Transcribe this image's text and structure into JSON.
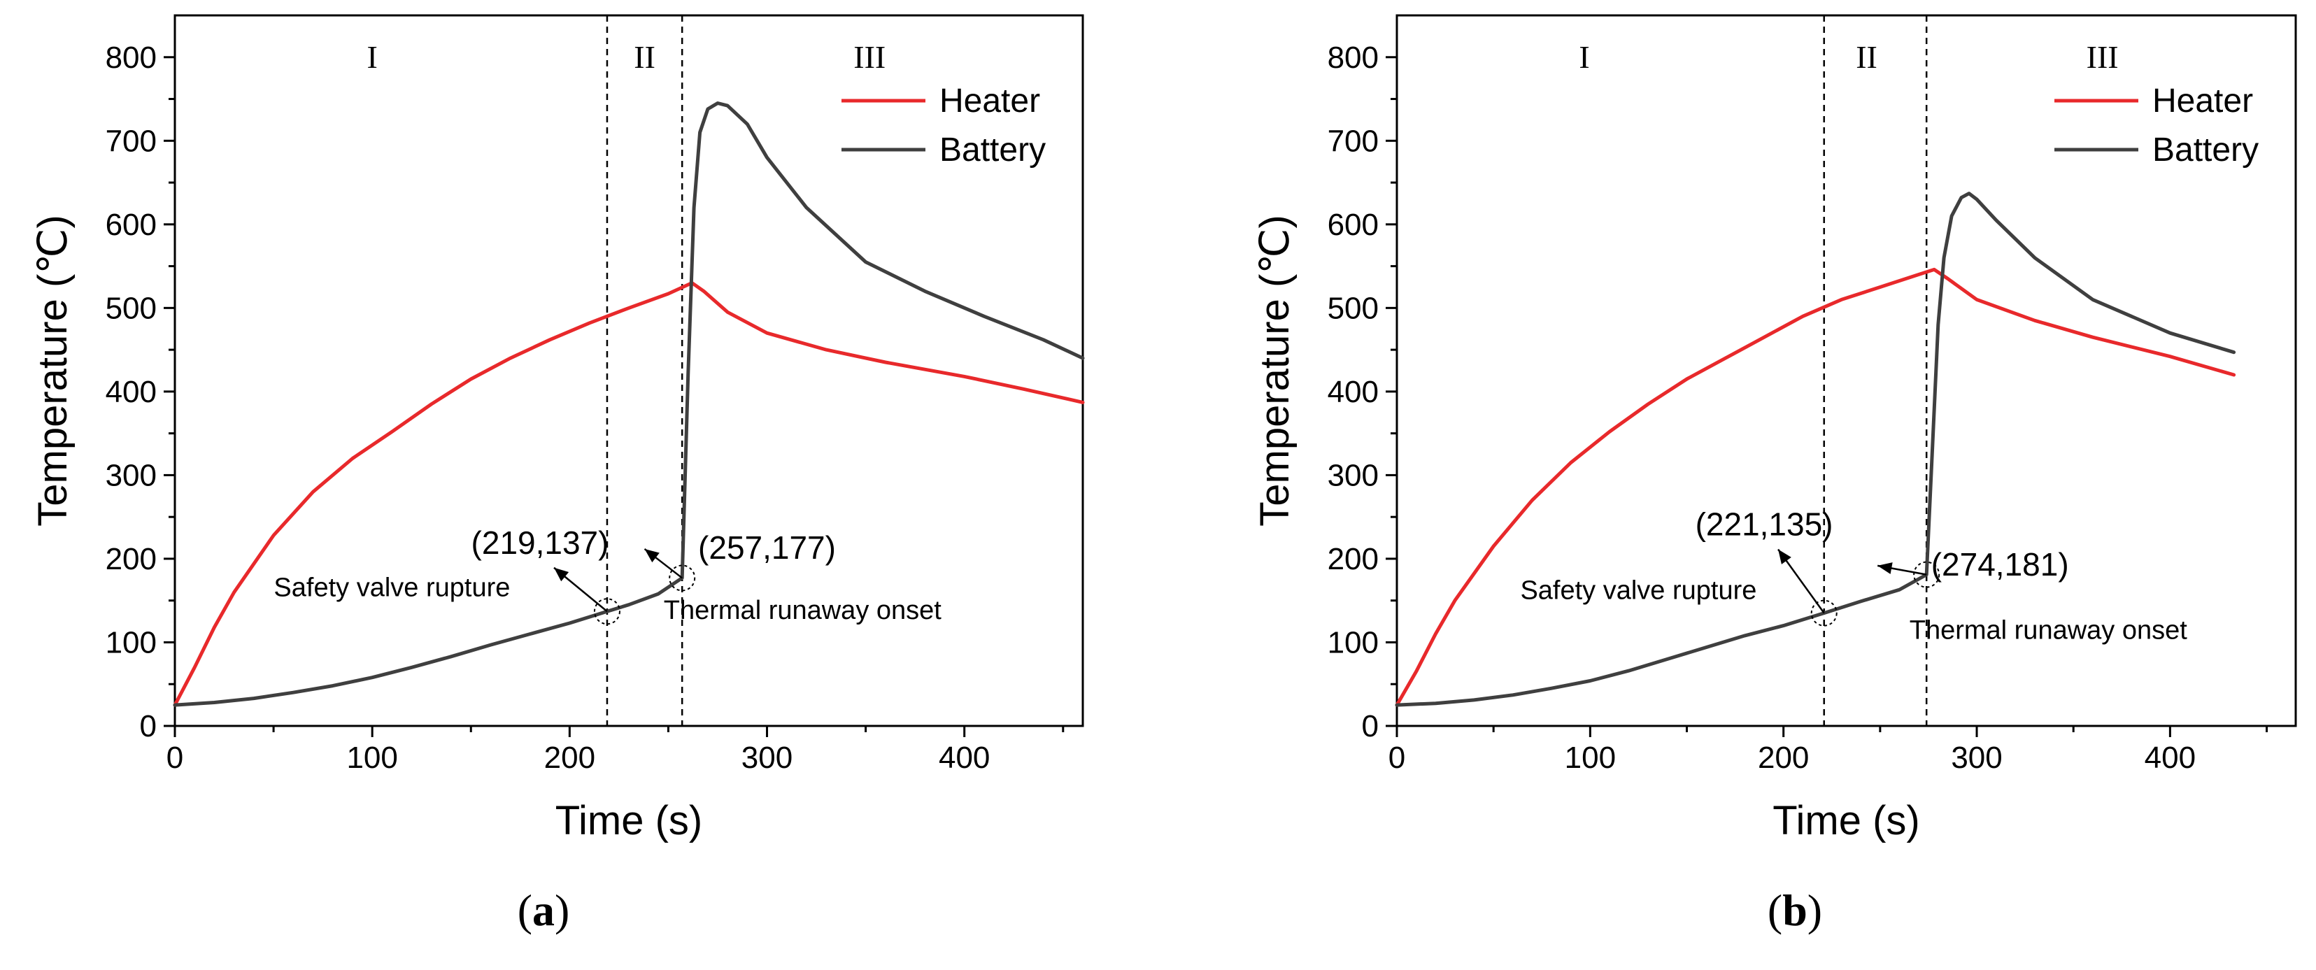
{
  "figure": {
    "panels": [
      {
        "caption_open": "(",
        "caption_label": "a",
        "caption_close": ")"
      },
      {
        "caption_open": "(",
        "caption_label": "b",
        "caption_close": ")"
      }
    ]
  },
  "chart_data": [
    {
      "type": "line",
      "panel": "a",
      "xlabel": "Time (s)",
      "ylabel": "Temperature (℃)",
      "xlim": [
        0,
        460
      ],
      "ylim": [
        0,
        850
      ],
      "xticks": [
        0,
        100,
        200,
        300,
        400
      ],
      "yticks": [
        0,
        100,
        200,
        300,
        400,
        500,
        600,
        700,
        800
      ],
      "grid": false,
      "legend_position": "top-right",
      "series": [
        {
          "name": "Heater",
          "color": "#e8292b",
          "x": [
            0,
            10,
            20,
            30,
            50,
            70,
            90,
            110,
            130,
            150,
            170,
            190,
            210,
            230,
            250,
            262,
            268,
            280,
            300,
            330,
            360,
            400,
            430,
            460
          ],
          "y": [
            25,
            70,
            118,
            160,
            228,
            280,
            320,
            352,
            385,
            415,
            440,
            462,
            482,
            500,
            517,
            530,
            520,
            495,
            470,
            450,
            435,
            418,
            403,
            387
          ]
        },
        {
          "name": "Battery",
          "color": "#3f3f3f",
          "x": [
            0,
            20,
            40,
            60,
            80,
            100,
            120,
            140,
            160,
            180,
            200,
            219,
            230,
            245,
            257,
            260,
            263,
            266,
            270,
            275,
            280,
            290,
            300,
            320,
            350,
            380,
            410,
            440,
            460
          ],
          "y": [
            25,
            28,
            33,
            40,
            48,
            58,
            70,
            83,
            97,
            110,
            123,
            137,
            145,
            158,
            177,
            420,
            620,
            710,
            738,
            745,
            742,
            720,
            680,
            620,
            555,
            520,
            490,
            462,
            440
          ]
        }
      ],
      "phases": [
        {
          "label": "I",
          "x": 100
        },
        {
          "label": "II",
          "x": 238
        },
        {
          "label": "III",
          "x": 352
        }
      ],
      "phase_lines": [
        219,
        257
      ],
      "annotations": [
        {
          "point_label": "(219,137)",
          "point": [
            219,
            137
          ],
          "label_at": [
            185,
            206
          ],
          "description": "Safety valve rupture",
          "desc_at": [
            110,
            155
          ]
        },
        {
          "point_label": "(257,177)",
          "point": [
            257,
            177
          ],
          "label_at": [
            300,
            200
          ],
          "description": "Thermal runaway onset",
          "desc_at": [
            318,
            128
          ]
        }
      ]
    },
    {
      "type": "line",
      "panel": "b",
      "xlabel": "Time (s)",
      "ylabel": "Temperature (℃)",
      "xlim": [
        0,
        465
      ],
      "ylim": [
        0,
        850
      ],
      "xticks": [
        0,
        100,
        200,
        300,
        400
      ],
      "yticks": [
        0,
        100,
        200,
        300,
        400,
        500,
        600,
        700,
        800
      ],
      "grid": false,
      "legend_position": "top-right",
      "series": [
        {
          "name": "Heater",
          "color": "#e8292b",
          "x": [
            0,
            10,
            20,
            30,
            50,
            70,
            90,
            110,
            130,
            150,
            170,
            190,
            210,
            230,
            250,
            270,
            278,
            285,
            300,
            330,
            360,
            400,
            433
          ],
          "y": [
            25,
            65,
            110,
            150,
            215,
            270,
            315,
            352,
            385,
            415,
            440,
            465,
            490,
            510,
            525,
            540,
            546,
            535,
            510,
            485,
            465,
            442,
            420
          ]
        },
        {
          "name": "Battery",
          "color": "#3f3f3f",
          "x": [
            0,
            20,
            40,
            60,
            80,
            100,
            120,
            140,
            160,
            180,
            200,
            221,
            240,
            260,
            274,
            277,
            280,
            283,
            287,
            292,
            296,
            300,
            310,
            330,
            360,
            400,
            433
          ],
          "y": [
            25,
            27,
            31,
            37,
            45,
            54,
            66,
            80,
            94,
            108,
            120,
            135,
            149,
            163,
            181,
            330,
            480,
            560,
            610,
            632,
            637,
            630,
            605,
            560,
            510,
            470,
            447
          ]
        }
      ],
      "phases": [
        {
          "label": "I",
          "x": 97
        },
        {
          "label": "II",
          "x": 243
        },
        {
          "label": "III",
          "x": 365
        }
      ],
      "phase_lines": [
        221,
        274
      ],
      "annotations": [
        {
          "point_label": "(221,135)",
          "point": [
            221,
            135
          ],
          "label_at": [
            190,
            228
          ],
          "description": "Safety valve rupture",
          "desc_at": [
            125,
            152
          ]
        },
        {
          "point_label": "(274,181)",
          "point": [
            274,
            181
          ],
          "label_at": [
            312,
            180
          ],
          "description": "Thermal runaway onset",
          "desc_at": [
            337,
            104
          ]
        }
      ]
    }
  ]
}
